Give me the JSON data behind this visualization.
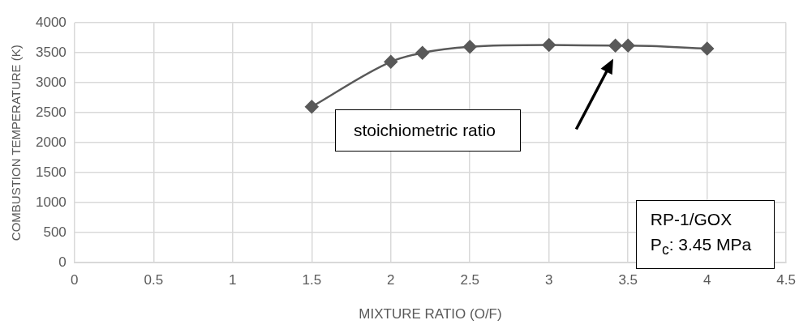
{
  "chart_data": {
    "type": "line",
    "xlabel": "MIXTURE RATIO (O/F)",
    "ylabel": "COMBUSTION TEMPERATURE (K)",
    "x": [
      1.5,
      2,
      2.2,
      2.5,
      3,
      3.42,
      3.5,
      4
    ],
    "series": [
      {
        "color": "#595959",
        "values": [
          2600,
          3350,
          3500,
          3600,
          3630,
          3620,
          3620,
          3570
        ]
      }
    ],
    "xlim": [
      0,
      4.5
    ],
    "xticks": [
      0,
      0.5,
      1,
      1.5,
      2,
      2.5,
      3,
      3.5,
      4,
      4.5
    ],
    "ylim": [
      0,
      4000
    ],
    "yticks": [
      0,
      500,
      1000,
      1500,
      2000,
      2500,
      3000,
      3500,
      4000
    ],
    "grid": true,
    "legend": false,
    "marker": "diamond",
    "line_style": "solid",
    "annotations": [
      "stoichiometric ratio",
      "RP-1/GOX",
      "P$_{c}$: 3.45 MPa"
    ]
  }
}
